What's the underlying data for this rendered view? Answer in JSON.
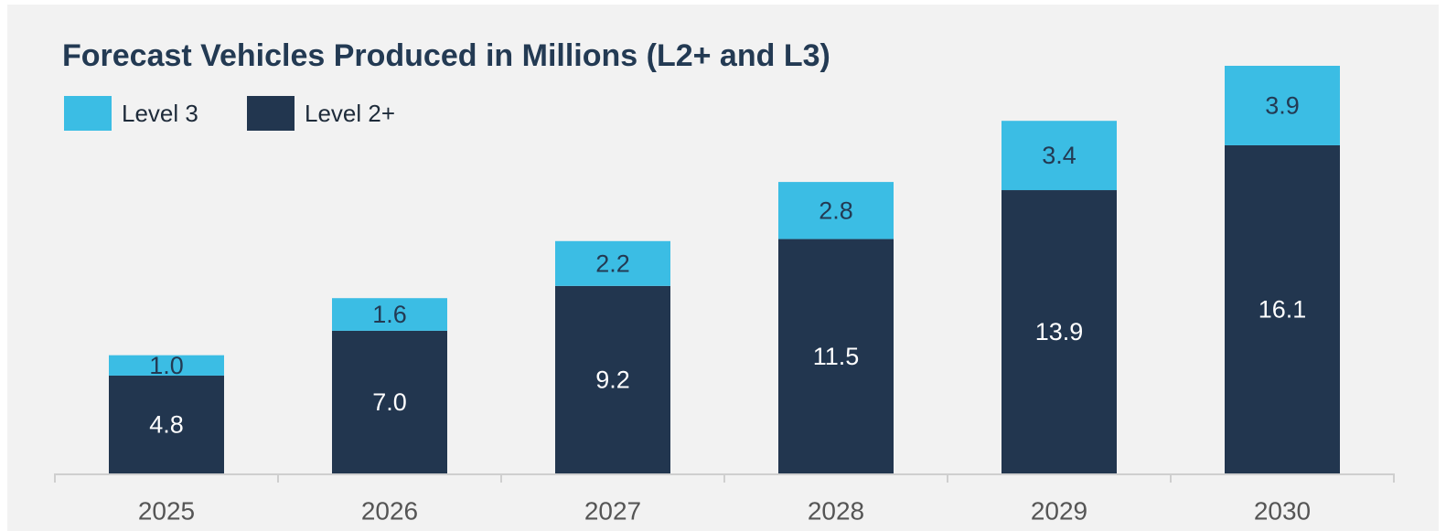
{
  "chart_data": {
    "type": "stacked-bar",
    "title": "Forecast Vehicles Produced in Millions (L2+ and L3)",
    "categories": [
      "2025",
      "2026",
      "2027",
      "2028",
      "2029",
      "2030"
    ],
    "series": [
      {
        "name": "Level 2+",
        "color": "#22364f",
        "values": [
          4.8,
          7.0,
          9.2,
          11.5,
          13.9,
          16.1
        ],
        "value_labels": [
          "4.8",
          "7.0",
          "9.2",
          "11.5",
          "13.9",
          "16.1"
        ]
      },
      {
        "name": "Level 3",
        "color": "#3bbde4",
        "values": [
          1.0,
          1.6,
          2.2,
          2.8,
          3.4,
          3.9
        ],
        "value_labels": [
          "1.0",
          "1.6",
          "2.2",
          "2.8",
          "3.4",
          "3.9"
        ]
      }
    ]
  }
}
